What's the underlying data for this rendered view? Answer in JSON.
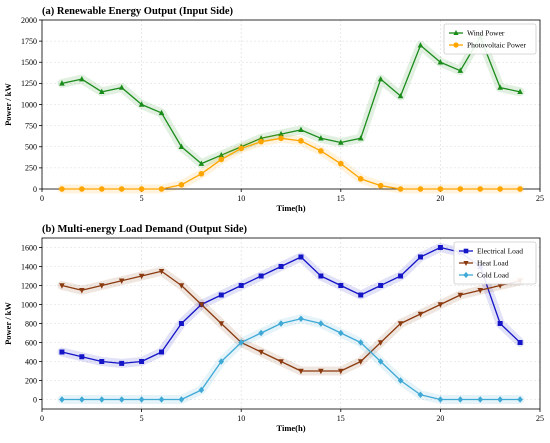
{
  "figure": {
    "panels": [
      {
        "title": "(a) Renewable Energy Output (Input Side)"
      },
      {
        "title": "(b) Multi-energy Load Demand (Output Side)"
      }
    ]
  },
  "chart_data": [
    {
      "type": "line",
      "title": "(a) Renewable Energy Output (Input Side)",
      "xlabel": "Time(h)",
      "ylabel": "Power / kW",
      "xlim": [
        0,
        25
      ],
      "ylim": [
        0,
        2000
      ],
      "xticks": [
        0,
        5,
        10,
        15,
        20,
        25
      ],
      "yticks": [
        0,
        250,
        500,
        750,
        1000,
        1250,
        1500,
        1750,
        2000
      ],
      "grid": true,
      "legend_position": "top-right",
      "x": [
        1,
        2,
        3,
        4,
        5,
        6,
        7,
        8,
        9,
        10,
        11,
        12,
        13,
        14,
        15,
        16,
        17,
        18,
        19,
        20,
        21,
        22,
        23,
        24
      ],
      "series": [
        {
          "name": "Wind Power",
          "color": "#1a8c1a",
          "marker": "triangle-up",
          "values": [
            1250,
            1300,
            1150,
            1200,
            1000,
            900,
            500,
            300,
            400,
            500,
            600,
            650,
            700,
            600,
            550,
            600,
            1300,
            1100,
            1700,
            1500,
            1400,
            1800,
            1200,
            1150
          ]
        },
        {
          "name": "Photovoltaic Power",
          "color": "#ffa500",
          "marker": "circle",
          "values": [
            0,
            0,
            0,
            0,
            0,
            0,
            50,
            180,
            350,
            480,
            560,
            600,
            570,
            450,
            300,
            120,
            40,
            0,
            0,
            0,
            0,
            0,
            0,
            0
          ]
        }
      ]
    },
    {
      "type": "line",
      "title": "(b) Multi-energy Load Demand (Output Side)",
      "xlabel": "Time(h)",
      "ylabel": "Power / kW",
      "xlim": [
        0,
        25
      ],
      "ylim": [
        -100,
        1700
      ],
      "xticks": [
        0,
        5,
        10,
        15,
        20,
        25
      ],
      "yticks": [
        0,
        200,
        400,
        600,
        800,
        1000,
        1200,
        1400,
        1600
      ],
      "grid": true,
      "legend_position": "top-right",
      "x": [
        1,
        2,
        3,
        4,
        5,
        6,
        7,
        8,
        9,
        10,
        11,
        12,
        13,
        14,
        15,
        16,
        17,
        18,
        19,
        20,
        21,
        22,
        23,
        24
      ],
      "series": [
        {
          "name": "Electrical Load",
          "color": "#1515c8",
          "marker": "square",
          "values": [
            500,
            450,
            400,
            380,
            400,
            500,
            800,
            1000,
            1100,
            1200,
            1300,
            1400,
            1500,
            1300,
            1200,
            1100,
            1200,
            1300,
            1500,
            1600,
            1550,
            1400,
            800,
            600
          ]
        },
        {
          "name": "Heat Load",
          "color": "#8b3a0f",
          "marker": "triangle-down",
          "values": [
            1200,
            1150,
            1200,
            1250,
            1300,
            1350,
            1200,
            1000,
            800,
            600,
            500,
            400,
            300,
            300,
            300,
            400,
            600,
            800,
            900,
            1000,
            1100,
            1150,
            1200,
            1250
          ]
        },
        {
          "name": "Cold Load",
          "color": "#3fa9d6",
          "marker": "diamond",
          "values": [
            0,
            0,
            0,
            0,
            0,
            0,
            0,
            100,
            400,
            600,
            700,
            800,
            850,
            800,
            700,
            600,
            400,
            200,
            50,
            0,
            0,
            0,
            0,
            0
          ]
        }
      ]
    }
  ]
}
